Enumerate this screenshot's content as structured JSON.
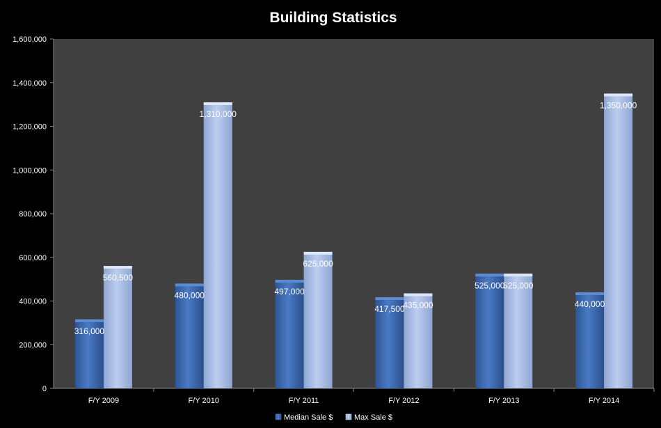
{
  "chart_data": {
    "type": "bar",
    "title": "Building Statistics",
    "categories": [
      "F/Y 2009",
      "F/Y 2010",
      "F/Y 2011",
      "F/Y 2012",
      "F/Y 2013",
      "F/Y 2014"
    ],
    "series": [
      {
        "name": "Median Sale $",
        "values": [
          316000,
          480000,
          497000,
          417500,
          525000,
          440000
        ],
        "labels": [
          "316,000",
          "480,000",
          "497,000",
          "417,500",
          "525,000",
          "440,000"
        ],
        "color": "#3E6DB5"
      },
      {
        "name": "Max Sale $",
        "values": [
          560500,
          1310000,
          625000,
          435000,
          525000,
          1350000
        ],
        "labels": [
          "560,500",
          "1,310,000",
          "625,000",
          "435,000",
          "525,000",
          "1,350,000"
        ],
        "color": "#A9BEE6"
      }
    ],
    "y_ticks": [
      "0",
      "200,000",
      "400,000",
      "600,000",
      "800,000",
      "1,000,000",
      "1,200,000",
      "1,400,000",
      "1,600,000"
    ],
    "ylim": [
      0,
      1600000
    ],
    "xlabel": "",
    "ylabel": "",
    "grid": false,
    "legend": "bottom",
    "plot_background": "#404040",
    "page_background": "#000000"
  }
}
